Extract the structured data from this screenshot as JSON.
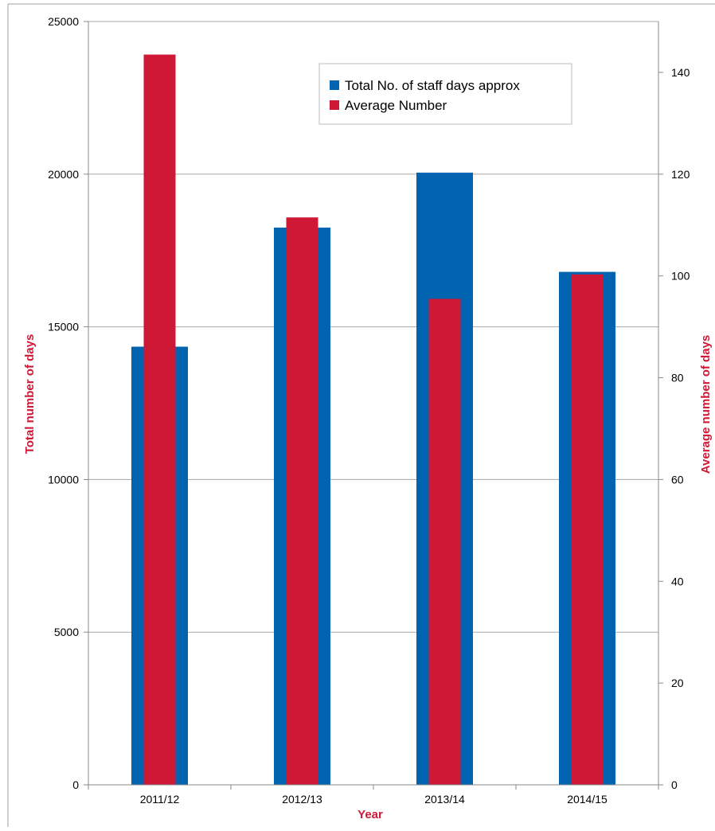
{
  "chart_data": {
    "type": "bar",
    "categories": [
      "2011/12",
      "2012/13",
      "2013/14",
      "2014/15"
    ],
    "series": [
      {
        "name": "Total No. of staff days approx",
        "axis": "left",
        "values": [
          14350,
          18250,
          20050,
          16800
        ],
        "color": "#0064b1"
      },
      {
        "name": "Average Number",
        "axis": "right",
        "values": [
          143.5,
          111.5,
          95.5,
          100.3
        ],
        "color": "#cf1836"
      }
    ],
    "y_left": {
      "label": "Total number of days",
      "ticks": [
        "0",
        "5000",
        "10000",
        "15000",
        "20000",
        "25000"
      ],
      "range": [
        0,
        25000
      ]
    },
    "y_right": {
      "label": "Average number of days",
      "ticks": [
        "0",
        "20",
        "40",
        "60",
        "80",
        "100",
        "120",
        "140"
      ],
      "range": [
        0,
        150
      ]
    },
    "xlabel": "Year",
    "axis_label_color": "#cf1836",
    "grid": true,
    "legend_position": "top-right",
    "title": ""
  }
}
